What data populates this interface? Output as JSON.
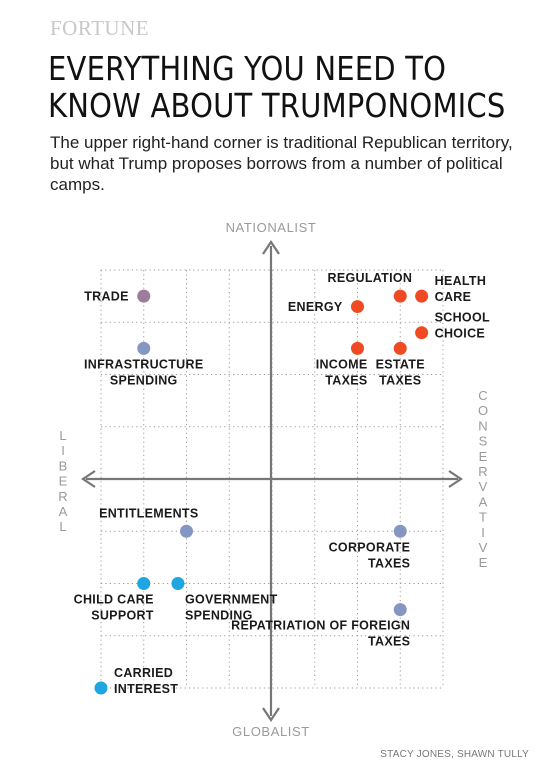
{
  "brand": "FORTUNE",
  "headline": {
    "line1": "EVERYTHING YOU NEED TO",
    "line2": "KNOW ABOUT TRUMPONOMICS"
  },
  "subtitle": "The upper right-hand corner is traditional Republican territory, but  what Trump proposes borrows from a number of political camps.",
  "credit": "STACY JONES, SHAWN TULLY",
  "colors": {
    "red": "#ef4a23",
    "blue": "#8596c3",
    "cyan": "#1fa6e0",
    "purple": "#9c7c98",
    "axis": "#777777",
    "grid": "#999999",
    "axis_label": "#9a9a9a"
  },
  "chart_data": {
    "type": "scatter",
    "title": "",
    "axes": {
      "top": "NATIONALIST",
      "bottom": "GLOBALIST",
      "left": "LIBERAL",
      "right": "CONSERVATIVE"
    },
    "xlim": [
      -4,
      4
    ],
    "ylim": [
      -4,
      4
    ],
    "grid": true,
    "points": [
      {
        "label": "TRADE",
        "x": -3,
        "y": 3.5,
        "color": "purple",
        "labelPos": "left"
      },
      {
        "label": "INFRASTRUCTURE SPENDING",
        "x": -3,
        "y": 2.5,
        "color": "blue",
        "labelPos": "below"
      },
      {
        "label": "REGULATION",
        "x": 3,
        "y": 3.5,
        "color": "red",
        "labelPos": "above-left"
      },
      {
        "label": "HEALTH CARE",
        "x": 3.5,
        "y": 3.5,
        "color": "red",
        "labelPos": "right"
      },
      {
        "label": "ENERGY",
        "x": 2,
        "y": 3.3,
        "color": "red",
        "labelPos": "left"
      },
      {
        "label": "SCHOOL CHOICE",
        "x": 3.5,
        "y": 2.8,
        "color": "red",
        "labelPos": "right"
      },
      {
        "label": "INCOME TAXES",
        "x": 2,
        "y": 2.5,
        "color": "red",
        "labelPos": "below-left"
      },
      {
        "label": "ESTATE TAXES",
        "x": 3,
        "y": 2.5,
        "color": "red",
        "labelPos": "below"
      },
      {
        "label": "ENTITLEMENTS",
        "x": -2,
        "y": -1,
        "color": "blue",
        "labelPos": "above-left"
      },
      {
        "label": "CORPORATE TAXES",
        "x": 3,
        "y": -1,
        "color": "blue",
        "labelPos": "below-left"
      },
      {
        "label": "CHILD CARE SUPPORT",
        "x": -3,
        "y": -2,
        "color": "cyan",
        "labelPos": "below-left"
      },
      {
        "label": "GOVERNMENT SPENDING",
        "x": -2.2,
        "y": -2,
        "color": "cyan",
        "labelPos": "below-right"
      },
      {
        "label": "REPATRIATION OF FOREIGN TAXES",
        "x": 3,
        "y": -2.5,
        "color": "blue",
        "labelPos": "below-left"
      },
      {
        "label": "CARRIED INTEREST",
        "x": -4,
        "y": -4,
        "color": "cyan",
        "labelPos": "right"
      }
    ]
  }
}
